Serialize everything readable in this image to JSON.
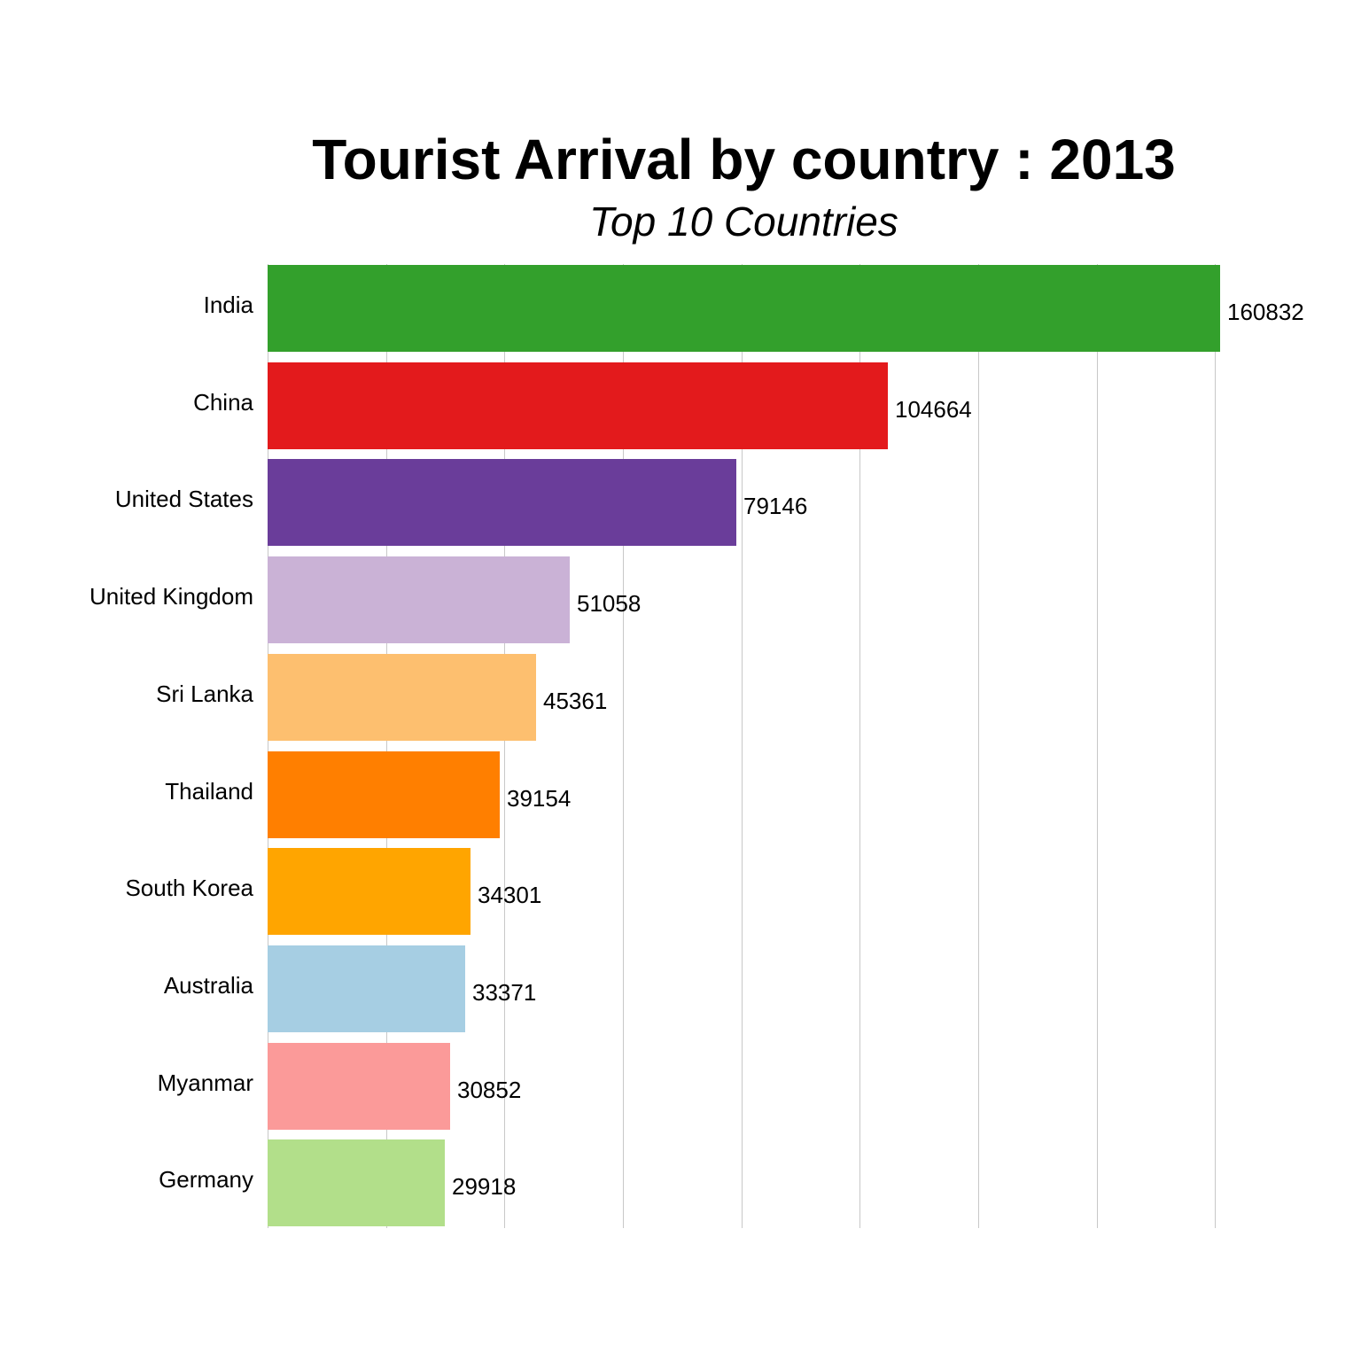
{
  "title": "Tourist Arrival by country : 2013",
  "subtitle": "Top 10 Countries",
  "chart_data": {
    "type": "bar",
    "orientation": "horizontal",
    "title": "Tourist Arrival by country : 2013",
    "subtitle": "Top 10 Countries",
    "xlabel": "",
    "ylabel": "",
    "categories": [
      "India",
      "China",
      "United States",
      "United Kingdom",
      "Sri Lanka",
      "Thailand",
      "South Korea",
      "Australia",
      "Myanmar",
      "Germany"
    ],
    "values": [
      160832,
      104664,
      79146,
      51058,
      45361,
      39154,
      34301,
      33371,
      30852,
      29918
    ],
    "colors": [
      "#33a02c",
      "#e31a1c",
      "#6a3d9a",
      "#cab2d6",
      "#fdbf6f",
      "#ff7f00",
      "#ffa500",
      "#a6cee3",
      "#fb9a99",
      "#b2df8a"
    ],
    "xlim": [
      0,
      160832
    ],
    "grid": {
      "vertical": true,
      "step": 20000,
      "color": "#c8c8c8"
    },
    "x_tick_labels_visible": false,
    "legend": "none",
    "data_labels": true
  }
}
